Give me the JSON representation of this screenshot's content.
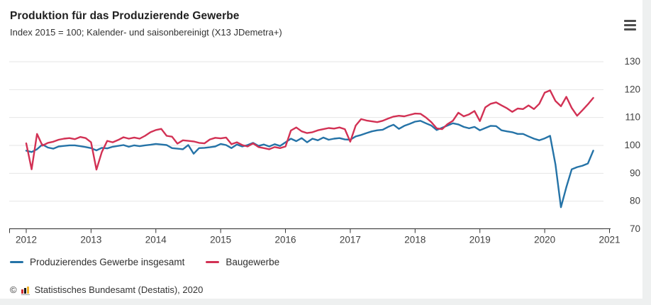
{
  "header": {
    "title": "Produktion für das Produzierende Gewerbe",
    "subtitle": "Index 2015 = 100; Kalender- und saisonbereinigt (X13 JDemetra+)",
    "menu_icon": "hamburger-menu"
  },
  "chart_data": {
    "type": "line",
    "title": "Produktion für das Produzierende Gewerbe",
    "subtitle": "Index 2015 = 100; Kalender- und saisonbereinigt (X13 JDemetra+)",
    "frequency": "monthly",
    "x_start": "2012-01",
    "x_end": "2020-10",
    "x_tick_labels": [
      "2012",
      "2013",
      "2014",
      "2015",
      "2016",
      "2017",
      "2018",
      "2019",
      "2020",
      "2021"
    ],
    "ylim": [
      70,
      130
    ],
    "y_ticks": [
      70,
      80,
      90,
      100,
      110,
      120,
      130
    ],
    "grid": "horizontal",
    "legend_position": "bottom-left",
    "axis_color": "#333333",
    "grid_color": "#e6e6e6",
    "tick_label_color": "#404040",
    "series": [
      {
        "name": "Produzierendes Gewerbe insgesamt",
        "color": "#2573a7",
        "values": [
          98.0,
          97.5,
          98.5,
          100.2,
          99.1,
          98.7,
          99.5,
          99.7,
          99.9,
          99.9,
          99.6,
          99.3,
          98.9,
          98.1,
          99.0,
          98.8,
          99.4,
          99.7,
          100.0,
          99.4,
          99.9,
          99.6,
          99.9,
          100.1,
          100.4,
          100.2,
          100.0,
          98.9,
          98.7,
          98.5,
          100.0,
          96.9,
          98.9,
          99.0,
          99.2,
          99.5,
          100.4,
          100.0,
          98.9,
          100.2,
          99.5,
          100.0,
          100.8,
          99.7,
          100.2,
          99.5,
          100.3,
          99.7,
          101.0,
          102.3,
          101.4,
          102.5,
          101.0,
          102.3,
          101.7,
          102.7,
          101.9,
          102.3,
          102.5,
          102.0,
          101.9,
          103.1,
          103.6,
          104.3,
          104.9,
          105.3,
          105.5,
          106.5,
          107.3,
          105.8,
          106.9,
          107.6,
          108.4,
          108.7,
          107.8,
          107.0,
          105.4,
          106.2,
          107.0,
          107.8,
          107.4,
          106.5,
          106.0,
          106.5,
          105.3,
          106.1,
          106.9,
          106.8,
          105.3,
          104.9,
          104.6,
          104.0,
          104.0,
          103.1,
          102.3,
          101.7,
          102.4,
          103.3,
          93.0,
          77.7,
          84.9,
          91.3,
          92.1,
          92.6,
          93.4,
          98.0
        ]
      },
      {
        "name": "Baugewerbe",
        "color": "#d23154",
        "values": [
          100.6,
          91.3,
          104.0,
          99.8,
          100.8,
          101.2,
          101.9,
          102.3,
          102.5,
          102.1,
          102.9,
          102.5,
          101.0,
          91.2,
          97.5,
          101.5,
          101.0,
          101.8,
          102.8,
          102.3,
          102.7,
          102.3,
          103.3,
          104.6,
          105.4,
          105.8,
          103.3,
          103.0,
          100.5,
          101.7,
          101.5,
          101.3,
          100.8,
          100.6,
          102.0,
          102.6,
          102.4,
          102.7,
          100.3,
          101.0,
          100.0,
          99.5,
          100.6,
          99.3,
          98.9,
          98.5,
          99.3,
          98.9,
          99.5,
          105.2,
          106.3,
          104.9,
          104.3,
          104.6,
          105.3,
          105.7,
          106.1,
          105.9,
          106.3,
          105.7,
          101.2,
          107.0,
          109.3,
          108.8,
          108.5,
          108.2,
          108.7,
          109.5,
          110.2,
          110.5,
          110.3,
          110.8,
          111.3,
          111.2,
          109.9,
          108.2,
          106.0,
          105.7,
          107.5,
          108.7,
          111.6,
          110.3,
          111.0,
          112.2,
          108.6,
          113.5,
          114.8,
          115.3,
          114.2,
          113.2,
          111.9,
          113.1,
          112.9,
          114.2,
          112.9,
          114.8,
          118.8,
          119.6,
          115.8,
          113.9,
          117.3,
          113.3,
          110.5,
          112.5,
          114.6,
          116.9
        ]
      }
    ]
  },
  "footer": {
    "copyright_symbol": "©",
    "copyright_text": "Statistisches Bundesamt (Destatis), 2020",
    "logo_icon": "destatis-bar-chart-logo",
    "logo_colors": {
      "bar1": "#d22d32",
      "bar2": "#1a1a1a",
      "bar3": "#f0b42d"
    }
  }
}
